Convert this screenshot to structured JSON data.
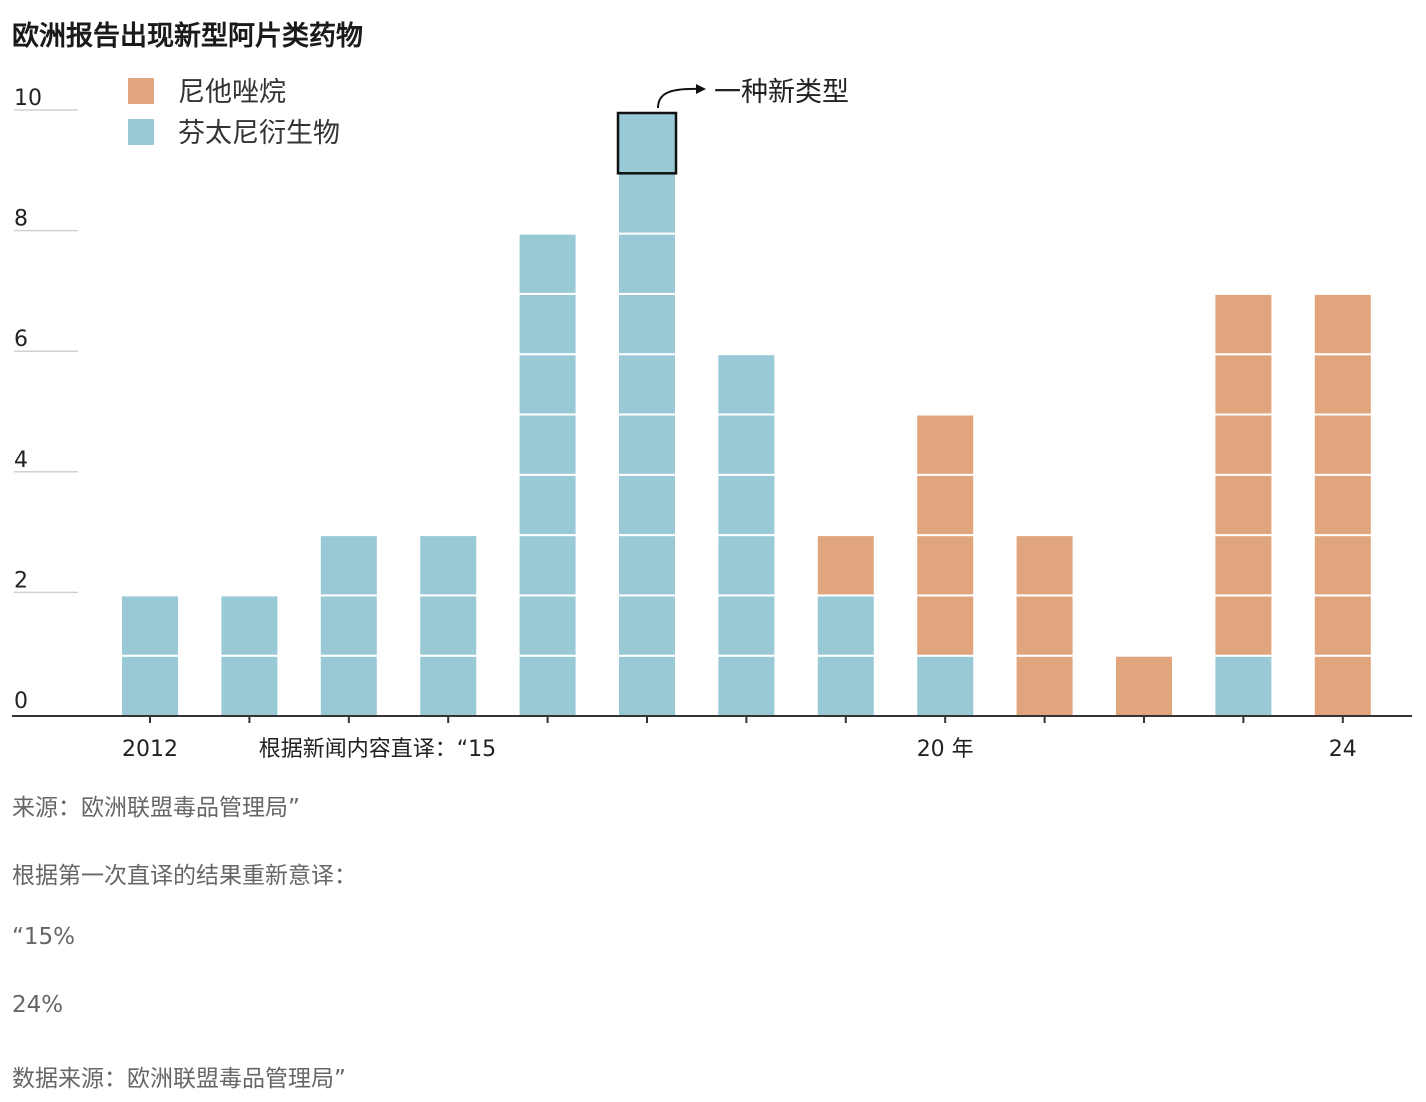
{
  "title": "欧洲报告出现新型阿片类药物",
  "colors": {
    "nitazenes": "#e0a57d",
    "fentanyl": "#9ac9d6",
    "axis": "#333333",
    "grid": "#d0d0d0"
  },
  "annotation": {
    "text": "一种新类型"
  },
  "chart_data": {
    "type": "bar",
    "stacked": true,
    "categories": [
      "2012",
      "2013",
      "2014",
      "2015",
      "2016",
      "2017",
      "2018",
      "2019",
      "2020",
      "2021",
      "2022",
      "2023",
      "2024"
    ],
    "x_tick_labels": [
      {
        "category": "2012",
        "label": "2012"
      },
      {
        "category": "2015",
        "label": "根据新闻内容直译：“15"
      },
      {
        "category": "2020",
        "label": "20 年"
      },
      {
        "category": "2024",
        "label": "24"
      }
    ],
    "series": [
      {
        "name": "芬太尼衍生物",
        "values": [
          2,
          2,
          3,
          3,
          8,
          10,
          6,
          2,
          1,
          0,
          0,
          1,
          0
        ]
      },
      {
        "name": "尼他唑烷",
        "values": [
          0,
          0,
          0,
          0,
          0,
          0,
          0,
          1,
          4,
          3,
          1,
          6,
          7
        ]
      }
    ],
    "legend_order": [
      "尼他唑烷",
      "芬太尼衍生物"
    ],
    "legend_position": "top-left",
    "ylim": [
      0,
      10
    ],
    "yticks": [
      "0",
      "2",
      "4",
      "6",
      "8",
      "10"
    ],
    "highlighted_unit": {
      "category": "2017",
      "series": "芬太尼衍生物",
      "index": 9
    }
  },
  "notes": [
    "来源：欧洲联盟毒品管理局”",
    "根据第一次直译的结果重新意译：",
    "“15%",
    "24%",
    "数据来源：欧洲联盟毒品管理局”"
  ]
}
